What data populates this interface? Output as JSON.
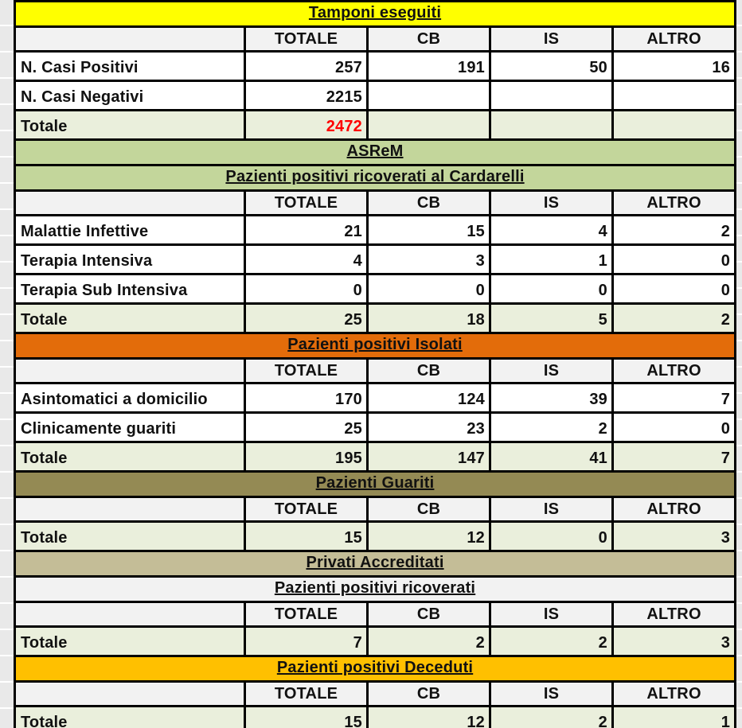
{
  "colors": {
    "header_row_bg": "#F2F2F2",
    "total_row_bg": "#EAEFDC",
    "data_row_bg": "#FFFFFF",
    "border": "#000000",
    "text": "#111111",
    "grand_total_text": "#FF0000",
    "gutter_bg": "#E9E9E9",
    "gutter_line": "#FFFFFF"
  },
  "table": {
    "columns": [
      "TOTALE",
      "CB",
      "IS",
      "ALTRO"
    ],
    "sections": [
      {
        "bands": [
          {
            "text": "Tamponi eseguiti",
            "bg": "#FFFF00"
          }
        ],
        "rows": [
          {
            "label": "N. Casi Positivi",
            "values": [
              "257",
              "191",
              "50",
              "16"
            ],
            "total": false
          },
          {
            "label": "N. Casi Negativi",
            "values": [
              "2215",
              "",
              "",
              ""
            ],
            "total": false
          },
          {
            "label": "Totale",
            "values": [
              "2472",
              "",
              "",
              ""
            ],
            "total": true,
            "value_color": "#FF0000"
          }
        ]
      },
      {
        "bands": [
          {
            "text": "ASReM",
            "bg": "#C3D69B"
          },
          {
            "text": "Pazienti positivi ricoverati al Cardarelli",
            "bg": "#C3D69B"
          }
        ],
        "rows": [
          {
            "label": "Malattie Infettive",
            "values": [
              "21",
              "15",
              "4",
              "2"
            ],
            "total": false
          },
          {
            "label": "Terapia Intensiva",
            "values": [
              "4",
              "3",
              "1",
              "0"
            ],
            "total": false
          },
          {
            "label": "Terapia Sub Intensiva",
            "values": [
              "0",
              "0",
              "0",
              "0"
            ],
            "total": false
          },
          {
            "label": "Totale",
            "values": [
              "25",
              "18",
              "5",
              "2"
            ],
            "total": true
          }
        ]
      },
      {
        "bands": [
          {
            "text": "Pazienti positivi Isolati",
            "bg": "#E36C0A"
          }
        ],
        "rows": [
          {
            "label": "Asintomatici a domicilio",
            "values": [
              "170",
              "124",
              "39",
              "7"
            ],
            "total": false
          },
          {
            "label": "Clinicamente guariti",
            "values": [
              "25",
              "23",
              "2",
              "0"
            ],
            "total": false
          },
          {
            "label": "Totale",
            "values": [
              "195",
              "147",
              "41",
              "7"
            ],
            "total": true
          }
        ]
      },
      {
        "bands": [
          {
            "text": "Pazienti Guariti",
            "bg": "#948A54"
          }
        ],
        "rows": [
          {
            "label": "Totale",
            "values": [
              "15",
              "12",
              "0",
              "3"
            ],
            "total": true
          }
        ]
      },
      {
        "bands": [
          {
            "text": "Privati Accreditati",
            "bg": "#C4BD97"
          },
          {
            "text": "Pazienti positivi ricoverati",
            "bg": "#F2F2F2"
          }
        ],
        "rows": [
          {
            "label": "Totale",
            "values": [
              "7",
              "2",
              "2",
              "3"
            ],
            "total": true
          }
        ]
      },
      {
        "bands": [
          {
            "text": "Pazienti positivi Deceduti",
            "bg": "#FFC000"
          }
        ],
        "rows": [
          {
            "label": "Totale",
            "values": [
              "15",
              "12",
              "2",
              "1"
            ],
            "total": true
          }
        ]
      }
    ]
  }
}
